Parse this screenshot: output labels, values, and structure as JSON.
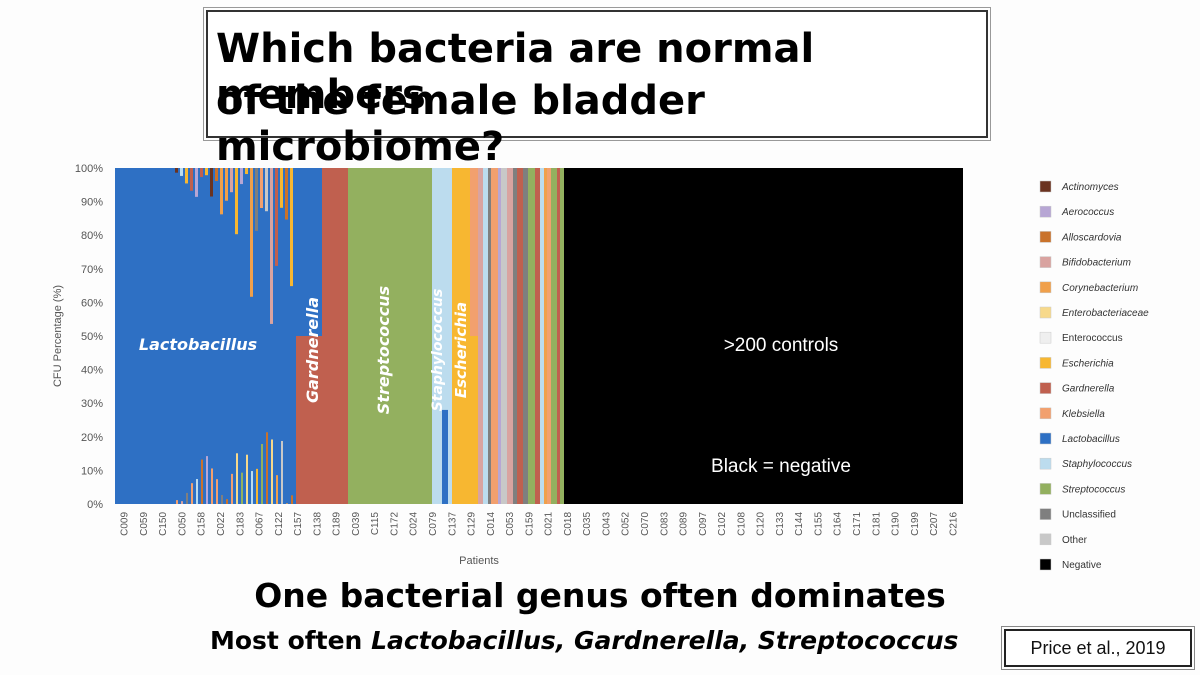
{
  "title": {
    "line1": "Which bacteria are normal members",
    "line2": "of the female bladder microbiome?"
  },
  "subtitle": "One bacterial genus often dominates",
  "subsub": {
    "prefix": "Most often ",
    "genera": "Lactobacillus, Gardnerella, Streptococcus"
  },
  "citation": "Price et al., 2019",
  "chart_data": {
    "type": "bar",
    "stacked": true,
    "ylabel": "CFU Percentage (%)",
    "xlabel": "Patients",
    "ylim": [
      0,
      100
    ],
    "y_ticks": [
      "0%",
      "10%",
      "20%",
      "30%",
      "40%",
      "50%",
      "60%",
      "70%",
      "80%",
      "90%",
      "100%"
    ],
    "x_tick_labels": [
      "C009",
      "C059",
      "C150",
      "C050",
      "C158",
      "C022",
      "C183",
      "C067",
      "C122",
      "C157",
      "C138",
      "C189",
      "C039",
      "C115",
      "C172",
      "C024",
      "C079",
      "C137",
      "C129",
      "C014",
      "C053",
      "C159",
      "C021",
      "C018",
      "C035",
      "C043",
      "C052",
      "C070",
      "C083",
      "C089",
      "C097",
      "C102",
      "C108",
      "C120",
      "C133",
      "C144",
      "C155",
      "C164",
      "C171",
      "C181",
      "C190",
      "C199",
      "C207",
      "C216"
    ],
    "groups": [
      {
        "genus": "Lactobacillus",
        "label": "Lactobacillus",
        "patients_from": "C009",
        "patients_to": "C122",
        "typical_percent": 90
      },
      {
        "genus": "Gardnerella",
        "label": "Gardnerella",
        "patients_from": "C157",
        "patients_to": "C189",
        "typical_percent": 100
      },
      {
        "genus": "Streptococcus",
        "label": "Streptococcus",
        "patients_from": "C039",
        "patients_to": "C024",
        "typical_percent": 100
      },
      {
        "genus": "Staphylococcus",
        "label": "Staphylococcus",
        "patients_from": "C079",
        "patients_to": "C079",
        "typical_percent": 100
      },
      {
        "genus": "Escherichia",
        "label": "Escherichia",
        "patients_from": "C137",
        "patients_to": "C137",
        "typical_percent": 100
      },
      {
        "genus": "Mixed",
        "label": "",
        "patients_from": "C129",
        "patients_to": "C021",
        "typical_percent": 100
      },
      {
        "genus": "Negative",
        "label": "",
        "patients_from": "C018",
        "patients_to": "C216",
        "typical_percent": 100
      }
    ],
    "annotations": [
      ">200 controls",
      "Black = negative"
    ],
    "legend": [
      {
        "name": "Actinomyces",
        "color": "#6b3320",
        "italic": true
      },
      {
        "name": "Aerococcus",
        "color": "#b7a6d4",
        "italic": true
      },
      {
        "name": "Alloscardovia",
        "color": "#c9722b",
        "italic": true
      },
      {
        "name": "Bifidobacterium",
        "color": "#d9a3a0",
        "italic": true
      },
      {
        "name": "Corynebacterium",
        "color": "#f0a04b",
        "italic": true
      },
      {
        "name": "Enterobacteriaceae",
        "color": "#f7d98b",
        "italic": true
      },
      {
        "name": "Enterococcus",
        "color": "#efefef",
        "italic": false
      },
      {
        "name": "Escherichia",
        "color": "#f7b731",
        "italic": true
      },
      {
        "name": "Gardnerella",
        "color": "#c0604f",
        "italic": true
      },
      {
        "name": "Klebsiella",
        "color": "#f2a06e",
        "italic": true
      },
      {
        "name": "Lactobacillus",
        "color": "#2e70c4",
        "italic": true
      },
      {
        "name": "Staphylococcus",
        "color": "#bcdcee",
        "italic": true
      },
      {
        "name": "Streptococcus",
        "color": "#93b05f",
        "italic": true
      },
      {
        "name": "Unclassified",
        "color": "#7f7f7f",
        "italic": false
      },
      {
        "name": "Other",
        "color": "#c8c8c8",
        "italic": false
      },
      {
        "name": "Negative",
        "color": "#000000",
        "italic": false
      }
    ]
  }
}
